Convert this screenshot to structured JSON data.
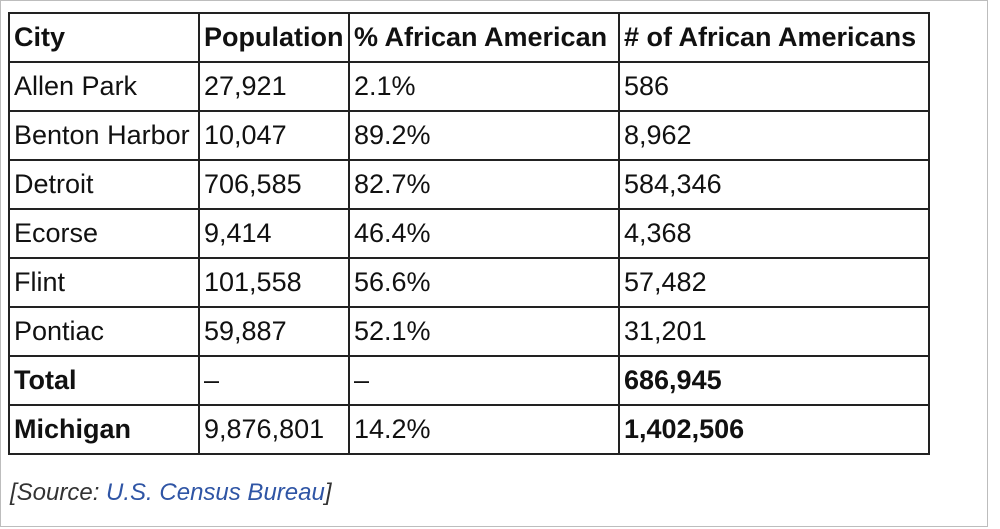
{
  "table": {
    "headers": [
      "City",
      "Population",
      "% African American",
      "# of African Americans"
    ],
    "rows": [
      {
        "cells": [
          "Allen Park",
          "27,921",
          "2.1%",
          "586"
        ],
        "bold": false
      },
      {
        "cells": [
          "Benton Harbor",
          "10,047",
          "89.2%",
          "8,962"
        ],
        "bold": false
      },
      {
        "cells": [
          "Detroit",
          "706,585",
          "82.7%",
          "584,346"
        ],
        "bold": false
      },
      {
        "cells": [
          "Ecorse",
          "9,414",
          "46.4%",
          "4,368"
        ],
        "bold": false
      },
      {
        "cells": [
          "Flint",
          "101,558",
          "56.6%",
          "57,482"
        ],
        "bold": false
      },
      {
        "cells": [
          "Pontiac",
          "59,887",
          "52.1%",
          "31,201"
        ],
        "bold": false
      },
      {
        "cells": [
          "Total",
          "–",
          "–",
          "686,945"
        ],
        "bold": true
      },
      {
        "cells": [
          "Michigan",
          "9,876,801",
          "14.2%",
          "1,402,506"
        ],
        "bold": true
      }
    ]
  },
  "source": {
    "prefix": "[Source: ",
    "link_text": "U.S. Census Bureau",
    "suffix": "]",
    "link_color": "#2f55a5"
  }
}
